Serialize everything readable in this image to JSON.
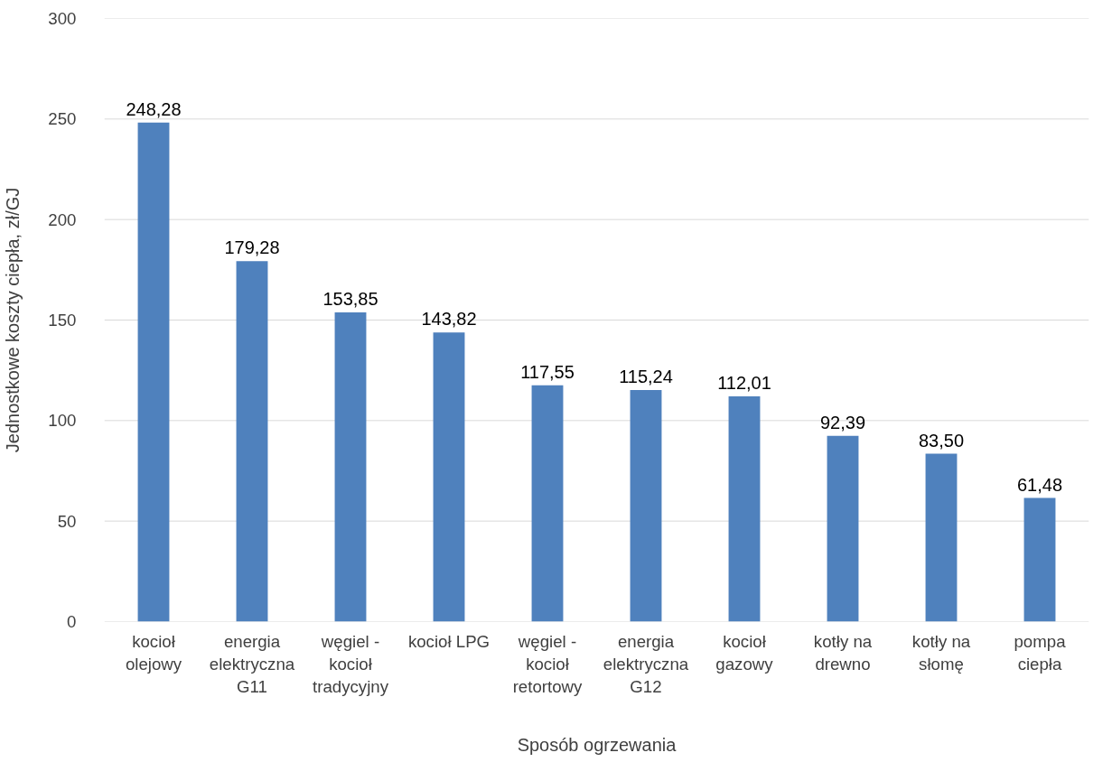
{
  "chart_data": {
    "type": "bar",
    "xlabel": "Sposób ogrzewania",
    "ylabel": "Jednostkowe koszty ciepła, zł/GJ",
    "categories": [
      "kocioł olejowy",
      "energia elektryczna G11",
      "węgiel - kocioł tradycyjny",
      "kocioł LPG",
      "węgiel - kocioł retortowy",
      "energia elektryczna G12",
      "kocioł gazowy",
      "kotły na drewno",
      "kotły na słomę",
      "pompa ciepła"
    ],
    "values": [
      248.28,
      179.28,
      153.85,
      143.82,
      117.55,
      115.24,
      112.01,
      92.39,
      83.5,
      61.48
    ],
    "value_labels": [
      "248,28",
      "179,28",
      "153,85",
      "143,82",
      "117,55",
      "115,24",
      "112,01",
      "92,39",
      "83,50",
      "61,48"
    ],
    "color": "#4f81bd",
    "ylim": [
      0,
      300
    ],
    "yticks": [
      0,
      50,
      100,
      150,
      200,
      250,
      300
    ],
    "grid": "y"
  }
}
